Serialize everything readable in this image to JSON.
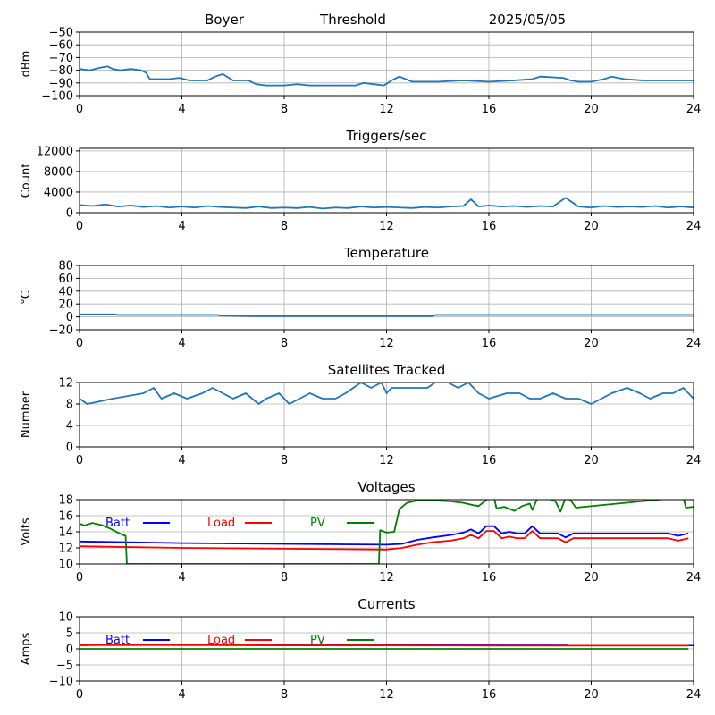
{
  "header": {
    "station": "Boyer",
    "label": "Threshold",
    "date": "2025/05/05"
  },
  "colors": {
    "series": "#1f77b4",
    "batt": "#0000ff",
    "load": "#ff0000",
    "pv": "#008000",
    "grid": "#b0b0b0"
  },
  "chart_data": [
    {
      "id": "signal",
      "type": "line",
      "title": "",
      "xlabel": "",
      "ylabel": "dBm",
      "xlim": [
        0,
        24
      ],
      "ylim": [
        -100,
        -50
      ],
      "xticks": [
        0,
        4,
        8,
        12,
        16,
        20,
        24
      ],
      "yticks": [
        -100,
        -90,
        -80,
        -70,
        -60,
        -50
      ],
      "grid": true,
      "series": [
        {
          "color": "#1f77b4",
          "x": [
            0,
            0.4,
            0.8,
            1.1,
            1.3,
            1.6,
            2.0,
            2.4,
            2.6,
            2.75,
            3.5,
            3.9,
            4.3,
            5.0,
            5.3,
            5.6,
            6.0,
            6.6,
            6.9,
            7.3,
            8.0,
            8.5,
            9.0,
            10.0,
            10.8,
            11.1,
            11.9,
            12.2,
            12.5,
            13.0,
            14.0,
            15.0,
            16.0,
            17.0,
            17.7,
            18.0,
            18.9,
            19.2,
            19.5,
            20.0,
            20.5,
            20.8,
            21.3,
            22.0,
            23.0,
            24
          ],
          "y": [
            -79,
            -80,
            -78,
            -77,
            -79,
            -80,
            -79,
            -80,
            -82,
            -87,
            -87,
            -86,
            -88,
            -88,
            -85,
            -83,
            -88,
            -88,
            -91,
            -92,
            -92,
            -91,
            -92,
            -92,
            -92,
            -90,
            -92,
            -88,
            -85,
            -89,
            -89,
            -88,
            -89,
            -88,
            -87,
            -85,
            -86,
            -88,
            -89,
            -89,
            -87,
            -85,
            -87,
            -88,
            -88,
            -88
          ]
        }
      ]
    },
    {
      "id": "triggers",
      "type": "line",
      "title": "Triggers/sec",
      "xlabel": "",
      "ylabel": "Count",
      "xlim": [
        0,
        24
      ],
      "ylim": [
        0,
        12500
      ],
      "xticks": [
        0,
        4,
        8,
        12,
        16,
        20,
        24
      ],
      "yticks": [
        0,
        4000,
        8000,
        12000
      ],
      "grid": true,
      "series": [
        {
          "color": "#1f77b4",
          "x": [
            0,
            0.5,
            1.0,
            1.5,
            2.0,
            2.5,
            3.0,
            3.5,
            4.0,
            4.5,
            5.0,
            5.5,
            6.0,
            6.5,
            7.0,
            7.5,
            8.0,
            8.5,
            9.0,
            9.5,
            10.0,
            10.5,
            11.0,
            11.5,
            12.0,
            12.5,
            13.0,
            13.5,
            14.0,
            14.5,
            15.0,
            15.3,
            15.6,
            16.0,
            16.5,
            17.0,
            17.5,
            18.0,
            18.5,
            19.0,
            19.5,
            20.0,
            20.5,
            21.0,
            21.5,
            22.0,
            22.5,
            23.0,
            23.5,
            24
          ],
          "y": [
            1500,
            1300,
            1600,
            1200,
            1400,
            1100,
            1300,
            1000,
            1200,
            1000,
            1300,
            1100,
            1000,
            900,
            1200,
            900,
            1000,
            900,
            1100,
            800,
            1000,
            900,
            1200,
            1000,
            1100,
            1000,
            900,
            1100,
            1000,
            1200,
            1300,
            2600,
            1200,
            1400,
            1200,
            1300,
            1100,
            1300,
            1200,
            2900,
            1200,
            1000,
            1300,
            1100,
            1200,
            1100,
            1300,
            1000,
            1200,
            1000
          ]
        }
      ]
    },
    {
      "id": "temperature",
      "type": "line",
      "title": "Temperature",
      "xlabel": "",
      "ylabel": "°C",
      "xlim": [
        0,
        24
      ],
      "ylim": [
        -20,
        80
      ],
      "xticks": [
        0,
        4,
        8,
        12,
        16,
        20,
        24
      ],
      "yticks": [
        -20,
        0,
        20,
        40,
        60,
        80
      ],
      "grid": true,
      "series": [
        {
          "color": "#1f77b4",
          "x": [
            0,
            1.4,
            1.5,
            5.4,
            5.5,
            7.0,
            13.8,
            13.9,
            24
          ],
          "y": [
            4,
            4,
            3,
            3,
            2,
            1,
            1,
            3,
            3
          ]
        }
      ]
    },
    {
      "id": "satellites",
      "type": "line",
      "title": "Satellites Tracked",
      "xlabel": "",
      "ylabel": "Number",
      "xlim": [
        0,
        24
      ],
      "ylim": [
        0,
        12
      ],
      "xticks": [
        0,
        4,
        8,
        12,
        16,
        20,
        24
      ],
      "yticks": [
        0,
        4,
        8,
        12
      ],
      "grid": true,
      "series": [
        {
          "color": "#1f77b4",
          "x": [
            0,
            0.3,
            1.3,
            2.5,
            2.9,
            3.2,
            3.7,
            4.2,
            4.8,
            5.2,
            5.6,
            6.0,
            6.5,
            7.0,
            7.3,
            7.8,
            8.2,
            8.6,
            9.0,
            9.5,
            10.0,
            10.4,
            10.7,
            11.0,
            11.4,
            11.8,
            12.0,
            12.2,
            12.5,
            13.0,
            13.6,
            13.9,
            14.4,
            14.8,
            15.2,
            15.6,
            16.0,
            16.7,
            17.2,
            17.6,
            18.0,
            18.5,
            19.0,
            19.5,
            20.0,
            20.4,
            20.8,
            21.4,
            21.9,
            22.3,
            22.8,
            23.2,
            23.6,
            24
          ],
          "y": [
            9,
            8,
            9,
            10,
            11,
            9,
            10,
            9,
            10,
            11,
            10,
            9,
            10,
            8,
            9,
            10,
            8,
            9,
            10,
            9,
            9,
            10,
            11,
            12,
            11,
            12,
            10,
            11,
            11,
            11,
            11,
            12,
            12,
            11,
            12,
            10,
            9,
            10,
            10,
            9,
            9,
            10,
            9,
            9,
            8,
            9,
            10,
            11,
            10,
            9,
            10,
            10,
            11,
            9
          ]
        }
      ]
    },
    {
      "id": "voltages",
      "type": "line",
      "title": "Voltages",
      "xlabel": "",
      "ylabel": "Volts",
      "xlim": [
        0,
        24
      ],
      "ylim": [
        10,
        18
      ],
      "xticks": [
        0,
        4,
        8,
        12,
        16,
        20,
        24
      ],
      "yticks": [
        10,
        12,
        14,
        16,
        18
      ],
      "grid": true,
      "legend": "top-left, inline",
      "series": [
        {
          "name": "Batt",
          "color": "#0000ff",
          "x": [
            0,
            4,
            8,
            12,
            12.6,
            13.2,
            13.8,
            14.5,
            15.0,
            15.3,
            15.6,
            15.9,
            16.2,
            16.5,
            16.8,
            17.1,
            17.4,
            17.7,
            18.0,
            18.4,
            18.7,
            19.0,
            19.3,
            19.6,
            20.0,
            21.0,
            22.0,
            23.0,
            23.4,
            23.8
          ],
          "y": [
            12.8,
            12.6,
            12.5,
            12.4,
            12.5,
            13.0,
            13.3,
            13.6,
            13.9,
            14.3,
            13.8,
            14.7,
            14.7,
            13.8,
            14.0,
            13.8,
            13.8,
            14.7,
            13.8,
            13.8,
            13.8,
            13.3,
            13.8,
            13.8,
            13.8,
            13.8,
            13.8,
            13.8,
            13.5,
            13.8
          ]
        },
        {
          "name": "Load",
          "color": "#ff0000",
          "x": [
            0,
            4,
            8,
            12,
            12.6,
            13.2,
            13.8,
            14.5,
            15.0,
            15.3,
            15.6,
            15.9,
            16.2,
            16.5,
            16.8,
            17.1,
            17.4,
            17.7,
            18.0,
            18.4,
            18.7,
            19.0,
            19.3,
            19.6,
            20.0,
            21.0,
            22.0,
            23.0,
            23.4,
            23.8
          ],
          "y": [
            12.2,
            12.0,
            11.9,
            11.8,
            12.0,
            12.4,
            12.7,
            12.9,
            13.2,
            13.6,
            13.2,
            14.1,
            14.1,
            13.2,
            13.4,
            13.2,
            13.2,
            14.1,
            13.2,
            13.2,
            13.2,
            12.7,
            13.2,
            13.2,
            13.2,
            13.2,
            13.2,
            13.2,
            12.9,
            13.2
          ]
        },
        {
          "name": "PV",
          "color": "#008000",
          "x": [
            0,
            0.2,
            0.5,
            0.9,
            1.2,
            1.5,
            1.7,
            1.8,
            1.85,
            11.7,
            11.75,
            12.0,
            12.3,
            12.5,
            12.8,
            13.2,
            13.8,
            14.5,
            15.0,
            15.4,
            15.6,
            16.0,
            16.2,
            16.3,
            16.6,
            17.0,
            17.3,
            17.6,
            17.7,
            17.9,
            18.2,
            18.6,
            18.8,
            19.0,
            19.2,
            19.4,
            23.6,
            23.7,
            24
          ],
          "y": [
            15.0,
            14.8,
            15.1,
            14.8,
            14.4,
            13.9,
            13.6,
            13.5,
            10.0,
            10.0,
            14.2,
            13.9,
            14.0,
            16.8,
            17.6,
            17.9,
            17.9,
            17.8,
            17.6,
            17.3,
            17.2,
            18.2,
            18.3,
            16.9,
            17.1,
            16.6,
            17.2,
            17.5,
            16.7,
            18.2,
            18.3,
            17.8,
            16.5,
            18.3,
            17.9,
            17.0,
            18.3,
            17.0,
            17.1
          ]
        }
      ]
    },
    {
      "id": "currents",
      "type": "line",
      "title": "Currents",
      "xlabel": "",
      "ylabel": "Amps",
      "xlim": [
        0,
        24
      ],
      "ylim": [
        -10,
        10
      ],
      "xticks": [
        0,
        4,
        8,
        12,
        16,
        20,
        24
      ],
      "yticks": [
        -10,
        -5,
        0,
        5,
        10
      ],
      "grid": true,
      "legend": "top-left, inline",
      "series": [
        {
          "name": "Batt",
          "color": "#0000ff",
          "x": [
            0,
            24
          ],
          "y": [
            1.2,
            1.1
          ]
        },
        {
          "name": "Load",
          "color": "#ff0000",
          "x": [
            0,
            1,
            4,
            8,
            12,
            16,
            20,
            23.8
          ],
          "y": [
            1.1,
            1.3,
            1.2,
            1.1,
            1.1,
            1.0,
            1.0,
            1.0
          ]
        },
        {
          "name": "PV",
          "color": "#008000",
          "x": [
            0,
            23.8
          ],
          "y": [
            0.0,
            0.0
          ]
        }
      ]
    }
  ]
}
